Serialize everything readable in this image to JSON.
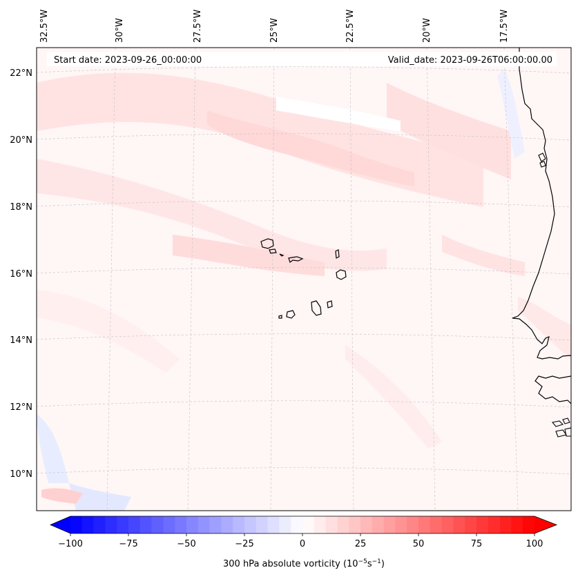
{
  "map": {
    "start_date": "Start date: 2023-09-26_00:00:00",
    "valid_date": "Valid_date: 2023-09-26T06:00:00.00",
    "lon_labels": [
      "32.5°W",
      "30°W",
      "27.5°W",
      "25°W",
      "22.5°W",
      "20°W",
      "17.5°W"
    ],
    "lat_labels": [
      "22°N",
      "20°N",
      "18°N",
      "16°N",
      "14°N",
      "12°N",
      "10°N"
    ],
    "coastline_color": "#000000",
    "gridline_color": "#bfbfbf"
  },
  "colorbar": {
    "label_prefix": "300 hPa absolute vorticity (10",
    "label_exp1": "−5",
    "label_mid": "s",
    "label_exp2": "−1",
    "label_suffix": ")",
    "ticks": [
      "−100",
      "−75",
      "−50",
      "−25",
      "0",
      "25",
      "50",
      "75",
      "100"
    ],
    "tick_values": [
      -100,
      -75,
      -50,
      -25,
      0,
      25,
      50,
      75,
      100
    ],
    "range": [
      -100,
      100
    ],
    "colormap": "bwr",
    "extend": "both",
    "low_color": "#0000ff",
    "mid_color": "#ffffff",
    "high_color": "#ff0000"
  }
}
